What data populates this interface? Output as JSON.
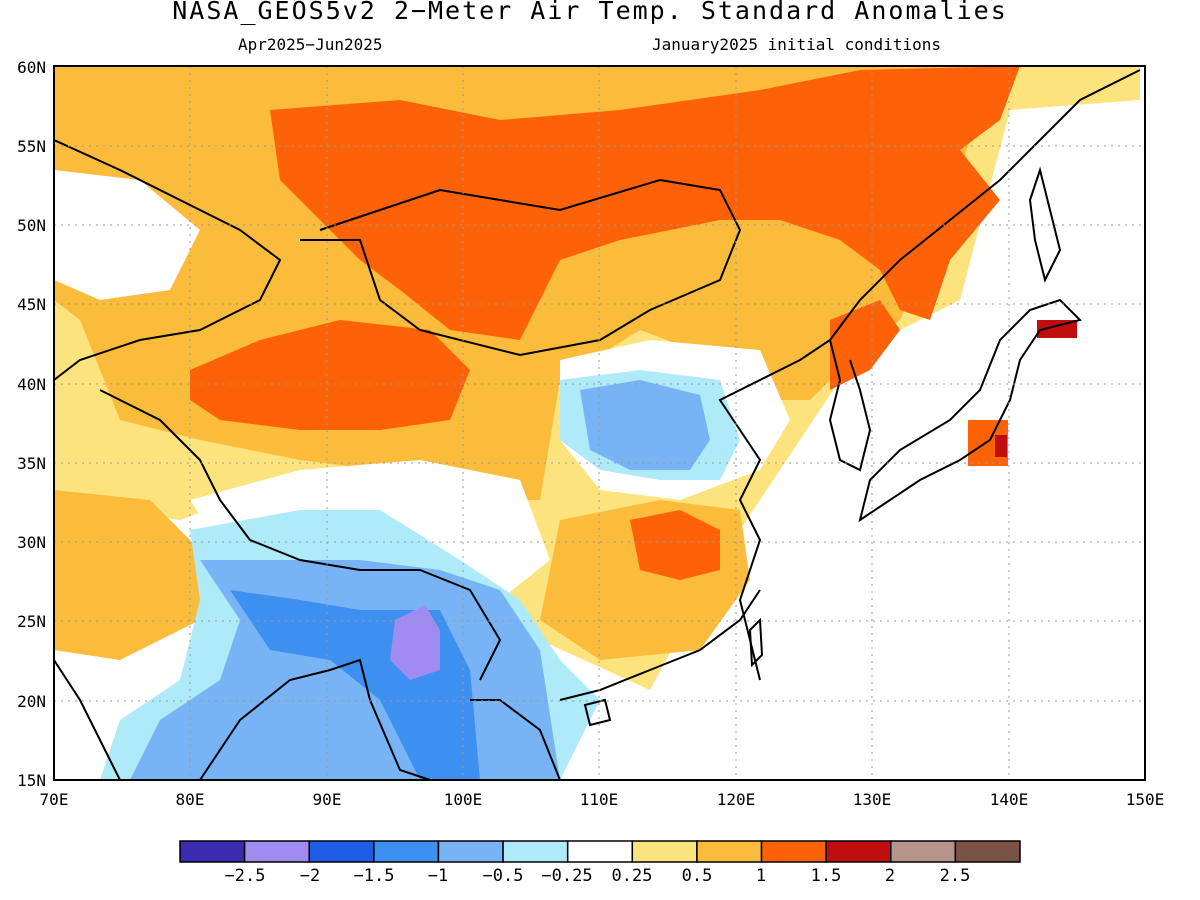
{
  "title": "NASA_GEOS5v2 2-Meter Air Temp. Standard Anomalies",
  "subtitle_left": "Apr2025-Jun2025",
  "subtitle_right": "January2025 initial conditions",
  "map": {
    "region": "East Asia",
    "lon_range": [
      70,
      150
    ],
    "lat_range": [
      15,
      60
    ],
    "gridlines": "dotted",
    "lat_ticks": [
      "15N",
      "20N",
      "25N",
      "30N",
      "35N",
      "40N",
      "45N",
      "50N",
      "55N",
      "60N"
    ],
    "lon_ticks": [
      "70E",
      "80E",
      "90E",
      "100E",
      "110E",
      "120E",
      "130E",
      "140E",
      "150E"
    ],
    "anomaly_fields": [
      {
        "level": "1 to 1.5",
        "description": "Siberia / Mongolia / NE China warm band"
      },
      {
        "level": "1 to 1.5",
        "description": "Tarim basin / western China"
      },
      {
        "level": "1 to 1.5",
        "description": "Sichuan / Hubei warm patch"
      },
      {
        "level": "1.5 to 2",
        "description": "Hokkaido small patch"
      },
      {
        "level": "-1.5 to -1",
        "description": "Myanmar / Yunnan cool area"
      },
      {
        "level": "-2.5 to -2",
        "description": "Central Myanmar core"
      },
      {
        "level": "-1 to -0.5",
        "description": "North China Plain cool patch"
      }
    ]
  },
  "colorbar": {
    "colors": [
      "#3a2bb0",
      "#a08cf0",
      "#1e5ce6",
      "#3d8ff0",
      "#78b4f5",
      "#aeeaf8",
      "#ffffff",
      "#fde37d",
      "#fbbc3c",
      "#fd6208",
      "#c00d0d",
      "#b59489",
      "#7a5346"
    ],
    "tick_labels": [
      "-2.5",
      "-2",
      "-1.5",
      "-1",
      "-0.5",
      "-0.25",
      "0.25",
      "0.5",
      "1",
      "1.5",
      "2",
      "2.5"
    ]
  }
}
